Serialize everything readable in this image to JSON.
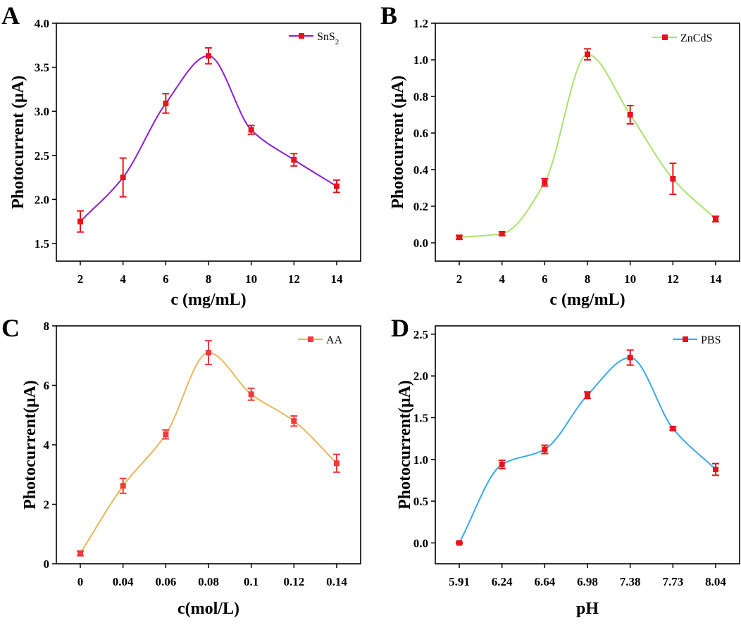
{
  "chart_data": [
    {
      "panel": "A",
      "type": "line",
      "series_name": "SnS",
      "series_subscript": "2",
      "line_color": "#8a1fd0",
      "marker_color": "#e8131b",
      "xlabel": "c (mg/mL)",
      "ylabel": "Photocurrent (μA)",
      "x": [
        2,
        4,
        6,
        8,
        10,
        12,
        14
      ],
      "x_tick_labels": [
        "2",
        "4",
        "6",
        "8",
        "10",
        "12",
        "14"
      ],
      "y": [
        1.75,
        2.25,
        3.09,
        3.63,
        2.79,
        2.45,
        2.15
      ],
      "y_err": [
        0.12,
        0.22,
        0.11,
        0.09,
        0.05,
        0.07,
        0.07
      ],
      "ylim": [
        1.3,
        4.0
      ],
      "y_ticks": [
        1.5,
        2.0,
        2.5,
        3.0,
        3.5,
        4.0
      ],
      "y_tick_labels": [
        "1.5",
        "2.0",
        "2.5",
        "3.0",
        "3.5",
        "4.0"
      ],
      "legend": "top-right"
    },
    {
      "panel": "B",
      "type": "line",
      "series_name": "ZnCdS",
      "series_subscript": "",
      "line_color": "#a9e36a",
      "marker_color": "#e8131b",
      "xlabel": "c (mg/mL)",
      "ylabel": "Photocurrent (μA)",
      "x": [
        2,
        4,
        6,
        8,
        10,
        12,
        14
      ],
      "x_tick_labels": [
        "2",
        "4",
        "6",
        "8",
        "10",
        "12",
        "14"
      ],
      "y": [
        0.03,
        0.05,
        0.33,
        1.03,
        0.7,
        0.35,
        0.13
      ],
      "y_err": [
        0.01,
        0.01,
        0.02,
        0.03,
        0.05,
        0.085,
        0.015
      ],
      "ylim": [
        -0.1,
        1.2
      ],
      "y_ticks": [
        0.0,
        0.2,
        0.4,
        0.6,
        0.8,
        1.0,
        1.2
      ],
      "y_tick_labels": [
        "0.0",
        "0.2",
        "0.4",
        "0.6",
        "0.8",
        "1.0",
        "1.2"
      ],
      "legend": "top-right"
    },
    {
      "panel": "C",
      "type": "line",
      "series_name": "AA",
      "series_subscript": "",
      "line_color": "#e9b659",
      "marker_color": "#f03b3b",
      "xlabel": "c(mol/L)",
      "ylabel": "Photocurrent(μA)",
      "x": [
        0,
        0.04,
        0.06,
        0.08,
        0.1,
        0.12,
        0.14
      ],
      "x_tick_labels": [
        "0",
        "0.04",
        "0.06",
        "0.08",
        "0.1",
        "0.12",
        "0.14"
      ],
      "y": [
        0.35,
        2.62,
        4.35,
        7.1,
        5.7,
        4.8,
        3.38
      ],
      "y_err": [
        0.08,
        0.25,
        0.15,
        0.4,
        0.2,
        0.17,
        0.3
      ],
      "ylim": [
        0,
        8
      ],
      "y_ticks": [
        0,
        2,
        4,
        6,
        8
      ],
      "y_tick_labels": [
        "0",
        "2",
        "4",
        "6",
        "8"
      ],
      "legend": "top-right"
    },
    {
      "panel": "D",
      "type": "line",
      "series_name": "PBS",
      "series_subscript": "",
      "line_color": "#3aa9ea",
      "marker_color": "#e8131b",
      "xlabel": "pH",
      "ylabel": "Photocurrent(μA)",
      "x": [
        5.91,
        6.24,
        6.64,
        6.98,
        7.38,
        7.73,
        8.04
      ],
      "x_tick_labels": [
        "5.91",
        "6.24",
        "6.64",
        "6.98",
        "7.38",
        "7.73",
        "8.04"
      ],
      "y": [
        0.0,
        0.94,
        1.12,
        1.77,
        2.22,
        1.37,
        0.88
      ],
      "y_err": [
        0.01,
        0.05,
        0.05,
        0.04,
        0.09,
        0.02,
        0.07
      ],
      "ylim": [
        -0.25,
        2.6
      ],
      "y_ticks": [
        0.0,
        0.5,
        1.0,
        1.5,
        2.0,
        2.5
      ],
      "y_tick_labels": [
        "0.0",
        "0.5",
        "1.0",
        "1.5",
        "2.0",
        "2.5"
      ],
      "legend": "top-right"
    }
  ]
}
